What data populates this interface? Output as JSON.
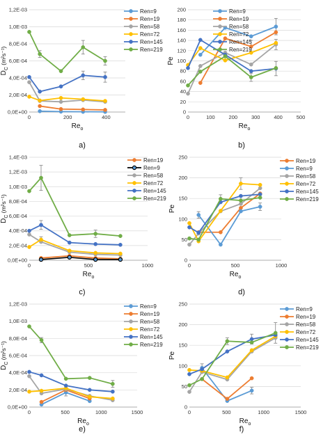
{
  "colors": {
    "Ren=9": "#5b9bd5",
    "Ren=19": "#ed7d31",
    "Ren=58": "#a5a5a5",
    "Ren=72": "#ffc000",
    "Ren=145": "#4472c4",
    "Ren=219": "#70ad47",
    "Ren=9_black": "#000000"
  },
  "chart_data": [
    {
      "id": "a",
      "panel_label": "a)",
      "type": "line",
      "xlabel_main": "Re",
      "xlabel_sub": "o",
      "ylabel_main": "D",
      "ylabel_sub": "C",
      "ylabel_unit": " (m²s⁻¹)",
      "xlim": [
        0,
        500
      ],
      "ylim": [
        0,
        0.0012
      ],
      "xticks": [
        0,
        200,
        400
      ],
      "xtick_labels": [
        "0",
        "200",
        "400"
      ],
      "yticks": [
        0,
        0.0002,
        0.0004,
        0.0006,
        0.0008,
        0.001,
        0.0012
      ],
      "ytick_labels": [
        "0,0E+00",
        "2,0E-04",
        "4,0E-04",
        "6,0E-04",
        "8,0E-04",
        "1,0E-03",
        "1,2E-03"
      ],
      "legend": "right",
      "series": [
        {
          "name": "Ren=9",
          "x": [
            55,
            165,
            280,
            395
          ],
          "y": [
            1e-05,
            5e-06,
            3e-06,
            2e-06
          ]
        },
        {
          "name": "Ren=19",
          "x": [
            55,
            165,
            280,
            395
          ],
          "y": [
            7e-05,
            3.5e-05,
            3e-05,
            2.5e-05
          ]
        },
        {
          "name": "Ren=58",
          "x": [
            0,
            55,
            165,
            280,
            395
          ],
          "y": [
            0.00035,
            0.00013,
            0.00012,
            0.00014,
            0.00012
          ]
        },
        {
          "name": "Ren=72",
          "x": [
            0,
            55,
            165,
            280,
            395
          ],
          "y": [
            0.00018,
            0.000135,
            0.000165,
            0.00015,
            0.00013
          ]
        },
        {
          "name": "Ren=145",
          "x": [
            0,
            55,
            165,
            280,
            395
          ],
          "y": [
            0.00041,
            0.00024,
            0.0003,
            0.00043,
            0.00041
          ]
        },
        {
          "name": "Ren=219",
          "x": [
            0,
            55,
            165,
            280,
            395
          ],
          "y": [
            0.00094,
            0.00068,
            0.00048,
            0.00076,
            0.0006
          ]
        }
      ],
      "errorbars": [
        {
          "series": "Ren=219",
          "x": 55,
          "y": 0.00068,
          "err": 4e-05
        },
        {
          "series": "Ren=219",
          "x": 280,
          "y": 0.00076,
          "err": 8e-05
        },
        {
          "series": "Ren=219",
          "x": 395,
          "y": 0.0006,
          "err": 5e-05
        },
        {
          "series": "Ren=145",
          "x": 280,
          "y": 0.00043,
          "err": 5e-05
        },
        {
          "series": "Ren=145",
          "x": 395,
          "y": 0.00041,
          "err": 6e-05
        }
      ]
    },
    {
      "id": "b",
      "panel_label": "b)",
      "type": "line",
      "xlabel_main": "Re",
      "xlabel_sub": "o",
      "ylabel_main": "Pe",
      "ylabel_sub": "",
      "ylabel_unit": "",
      "xlim": [
        0,
        500
      ],
      "ylim": [
        0,
        200
      ],
      "xticks": [
        0,
        100,
        200,
        300,
        400,
        500
      ],
      "xtick_labels": [
        "0",
        "100",
        "200",
        "300",
        "400",
        "500"
      ],
      "yticks": [
        0,
        20,
        40,
        60,
        80,
        100,
        120,
        140,
        160,
        180,
        200
      ],
      "ytick_labels": [
        "0",
        "20",
        "40",
        "60",
        "80",
        "100",
        "120",
        "140",
        "160",
        "180",
        "200"
      ],
      "legend": "top-right",
      "series": [
        {
          "name": "Ren=9",
          "x": [
            55,
            165,
            280,
            390
          ],
          "y": [
            112,
            165,
            148,
            167
          ]
        },
        {
          "name": "Ren=19",
          "x": [
            55,
            165,
            280,
            390
          ],
          "y": [
            57,
            144,
            128,
            156
          ]
        },
        {
          "name": "Ren=58",
          "x": [
            0,
            55,
            165,
            280,
            390
          ],
          "y": [
            36,
            90,
            116,
            93,
            132
          ]
        },
        {
          "name": "Ren=72",
          "x": [
            0,
            55,
            165,
            280,
            390
          ],
          "y": [
            92,
            125,
            101,
            116,
            135
          ]
        },
        {
          "name": "Ren=145",
          "x": [
            0,
            55,
            165,
            280,
            390
          ],
          "y": [
            86,
            141,
            112,
            80,
            85
          ]
        },
        {
          "name": "Ren=219",
          "x": [
            0,
            55,
            165,
            280,
            390
          ],
          "y": [
            52,
            79,
            109,
            68,
            86
          ]
        }
      ],
      "errorbars": [
        {
          "series": "Ren=9",
          "x": 390,
          "y": 167,
          "err": 16
        },
        {
          "series": "Ren=19",
          "x": 280,
          "y": 128,
          "err": 12
        },
        {
          "series": "Ren=58",
          "x": 390,
          "y": 132,
          "err": 10
        },
        {
          "series": "Ren=219",
          "x": 280,
          "y": 68,
          "err": 8
        },
        {
          "series": "Ren=145",
          "x": 390,
          "y": 85,
          "err": 14
        }
      ]
    },
    {
      "id": "c",
      "panel_label": "c)",
      "type": "line",
      "xlabel_main": "Re",
      "xlabel_sub": "o",
      "ylabel_main": "D",
      "ylabel_sub": "C",
      "ylabel_unit": " (m²s⁻¹)",
      "xlim": [
        0,
        1000
      ],
      "ylim": [
        0,
        0.0014
      ],
      "xticks": [
        0,
        500,
        1000
      ],
      "xtick_labels": [
        "0",
        "500",
        "1000"
      ],
      "yticks": [
        0,
        0.0002,
        0.0004,
        0.0006,
        0.0008,
        0.001,
        0.0012,
        0.0014
      ],
      "ytick_labels": [
        "0,0E+00",
        "2,0E-04",
        "4,0E-04",
        "6,0E-04",
        "8,0E-04",
        "1,0E-03",
        "1,2E-03",
        "1,4E-03"
      ],
      "legend": "right",
      "series": [
        {
          "name": "Ren=19",
          "x": [
            100,
            340,
            560,
            770
          ],
          "y": [
            3e-05,
            6e-05,
            3e-05,
            2e-05
          ]
        },
        {
          "name": "Ren=9",
          "x": [
            100,
            340,
            560,
            770
          ],
          "y": [
            1e-05,
            4e-05,
            1e-05,
            1e-05
          ],
          "style": "black-edge"
        },
        {
          "name": "Ren=58",
          "x": [
            0,
            100,
            340,
            560,
            770
          ],
          "y": [
            0.00035,
            0.00025,
            0.00011,
            8e-05,
            7e-05
          ]
        },
        {
          "name": "Ren=72",
          "x": [
            0,
            100,
            340,
            560,
            770
          ],
          "y": [
            0.00018,
            0.00028,
            0.00013,
            0.0001,
            9e-05
          ]
        },
        {
          "name": "Ren=145",
          "x": [
            0,
            100,
            340,
            560,
            770
          ],
          "y": [
            0.0004,
            0.00048,
            0.00024,
            0.00022,
            0.00021
          ]
        },
        {
          "name": "Ren=219",
          "x": [
            0,
            100,
            340,
            560,
            770
          ],
          "y": [
            0.00094,
            0.00112,
            0.00034,
            0.00036,
            0.00033
          ]
        }
      ],
      "errorbars": [
        {
          "series": "Ren=219",
          "x": 100,
          "y": 0.00112,
          "err": 0.00017
        },
        {
          "series": "Ren=219",
          "x": 560,
          "y": 0.00036,
          "err": 5e-05
        },
        {
          "series": "Ren=145",
          "x": 100,
          "y": 0.00048,
          "err": 6e-05
        },
        {
          "series": "Ren=72",
          "x": 100,
          "y": 0.00028,
          "err": 4e-05
        }
      ]
    },
    {
      "id": "d",
      "panel_label": "d)",
      "type": "line",
      "xlabel_main": "Re",
      "xlabel_sub": "o",
      "ylabel_main": "Pe",
      "ylabel_sub": "",
      "ylabel_unit": "",
      "xlim": [
        0,
        1000
      ],
      "ylim": [
        0,
        250
      ],
      "xticks": [
        0,
        500,
        1000
      ],
      "xtick_labels": [
        "0",
        "500",
        "1000"
      ],
      "yticks": [
        0,
        50,
        100,
        150,
        200,
        250
      ],
      "ytick_labels": [
        "0",
        "50",
        "100",
        "150",
        "200",
        "250"
      ],
      "legend": "top-right",
      "series": [
        {
          "name": "Ren=19",
          "x": [
            100,
            340,
            560,
            770
          ],
          "y": [
            68,
            68,
            127,
            162
          ]
        },
        {
          "name": "Ren=9",
          "x": [
            100,
            340,
            560,
            770
          ],
          "y": [
            110,
            38,
            119,
            130
          ]
        },
        {
          "name": "Ren=58",
          "x": [
            0,
            100,
            340,
            560,
            770
          ],
          "y": [
            38,
            65,
            119,
            137,
            175
          ]
        },
        {
          "name": "Ren=72",
          "x": [
            0,
            100,
            340,
            560,
            770
          ],
          "y": [
            90,
            46,
            120,
            186,
            183
          ]
        },
        {
          "name": "Ren=145",
          "x": [
            0,
            100,
            340,
            560,
            770
          ],
          "y": [
            80,
            67,
            141,
            156,
            160
          ]
        },
        {
          "name": "Ren=219",
          "x": [
            0,
            100,
            340,
            560,
            770
          ],
          "y": [
            53,
            50,
            149,
            145,
            152
          ]
        }
      ],
      "errorbars": [
        {
          "series": "Ren=9",
          "x": 100,
          "y": 110,
          "err": 8
        },
        {
          "series": "Ren=72",
          "x": 560,
          "y": 186,
          "err": 14
        },
        {
          "series": "Ren=219",
          "x": 340,
          "y": 149,
          "err": 10
        },
        {
          "series": "Ren=9",
          "x": 770,
          "y": 130,
          "err": 9
        }
      ]
    },
    {
      "id": "e",
      "panel_label": "e)",
      "type": "line",
      "xlabel_main": "Re",
      "xlabel_sub": "o",
      "ylabel_main": "D",
      "ylabel_sub": "C",
      "ylabel_unit": " (m²s⁻¹)",
      "xlim": [
        0,
        1500
      ],
      "ylim": [
        0,
        0.0012
      ],
      "xticks": [
        0,
        500,
        1000,
        1500
      ],
      "xtick_labels": [
        "0",
        "500",
        "1000",
        "1500"
      ],
      "yticks": [
        0,
        0.0002,
        0.0004,
        0.0006,
        0.0008,
        0.001,
        0.0012
      ],
      "ytick_labels": [
        "0,0E+00",
        "2,0E-04",
        "4,0E-04",
        "6,0E-04",
        "8,0E-04",
        "1,0E-03",
        "1,2E-03"
      ],
      "legend": "right",
      "series": [
        {
          "name": "Ren=9",
          "x": [
            170,
            510,
            840
          ],
          "y": [
            3e-05,
            0.00017,
            7e-05
          ]
        },
        {
          "name": "Ren=19",
          "x": [
            170,
            510,
            840
          ],
          "y": [
            6e-05,
            0.0002,
            0.0001
          ]
        },
        {
          "name": "Ren=58",
          "x": [
            0,
            170,
            510,
            840,
            1160
          ],
          "y": [
            0.00036,
            0.00016,
            0.00021,
            0.00013,
            8e-05
          ]
        },
        {
          "name": "Ren=72",
          "x": [
            0,
            170,
            510,
            840,
            1160
          ],
          "y": [
            0.00018,
            0.00019,
            0.00022,
            0.00012,
            0.0001
          ]
        },
        {
          "name": "Ren=145",
          "x": [
            0,
            170,
            510,
            840,
            1160
          ],
          "y": [
            0.00041,
            0.00037,
            0.00025,
            0.0002,
            0.00018
          ]
        },
        {
          "name": "Ren=219",
          "x": [
            0,
            170,
            510,
            840,
            1160
          ],
          "y": [
            0.00094,
            0.00078,
            0.00033,
            0.00034,
            0.00027
          ]
        }
      ],
      "errorbars": [
        {
          "series": "Ren=219",
          "x": 170,
          "y": 0.00078,
          "err": 3e-05
        },
        {
          "series": "Ren=219",
          "x": 1160,
          "y": 0.00027,
          "err": 4e-05
        },
        {
          "series": "Ren=9",
          "x": 510,
          "y": 0.00017,
          "err": 4e-05
        }
      ]
    },
    {
      "id": "f",
      "panel_label": "f)",
      "type": "line",
      "xlabel_main": "Re",
      "xlabel_sub": "o",
      "ylabel_main": "Pe",
      "ylabel_sub": "",
      "ylabel_unit": "",
      "xlim": [
        0,
        1500
      ],
      "ylim": [
        0,
        250
      ],
      "xticks": [
        0,
        500,
        1000,
        1500
      ],
      "xtick_labels": [
        "0",
        "500",
        "1000",
        "1500"
      ],
      "yticks": [
        0,
        50,
        100,
        150,
        200,
        250
      ],
      "ytick_labels": [
        "0",
        "50",
        "100",
        "150",
        "200",
        "250"
      ],
      "legend": "top-right",
      "series": [
        {
          "name": "Ren=9",
          "x": [
            170,
            510,
            840
          ],
          "y": [
            95,
            15,
            40
          ]
        },
        {
          "name": "Ren=19",
          "x": [
            170,
            510,
            840
          ],
          "y": [
            68,
            20,
            70
          ]
        },
        {
          "name": "Ren=58",
          "x": [
            0,
            170,
            510,
            840,
            1160
          ],
          "y": [
            37,
            85,
            67,
            135,
            168
          ]
        },
        {
          "name": "Ren=72",
          "x": [
            0,
            170,
            510,
            840,
            1160
          ],
          "y": [
            90,
            88,
            72,
            138,
            172
          ]
        },
        {
          "name": "Ren=145",
          "x": [
            0,
            170,
            510,
            840,
            1160
          ],
          "y": [
            80,
            92,
            135,
            165,
            175
          ]
        },
        {
          "name": "Ren=219",
          "x": [
            0,
            170,
            510,
            840,
            1160
          ],
          "y": [
            53,
            68,
            160,
            157,
            180
          ]
        }
      ],
      "errorbars": [
        {
          "series": "Ren=9",
          "x": 170,
          "y": 95,
          "err": 10
        },
        {
          "series": "Ren=9",
          "x": 840,
          "y": 40,
          "err": 8
        },
        {
          "series": "Ren=219",
          "x": 1160,
          "y": 180,
          "err": 25
        },
        {
          "series": "Ren=145",
          "x": 840,
          "y": 165,
          "err": 12
        },
        {
          "series": "Ren=219",
          "x": 510,
          "y": 160,
          "err": 8
        }
      ]
    }
  ]
}
